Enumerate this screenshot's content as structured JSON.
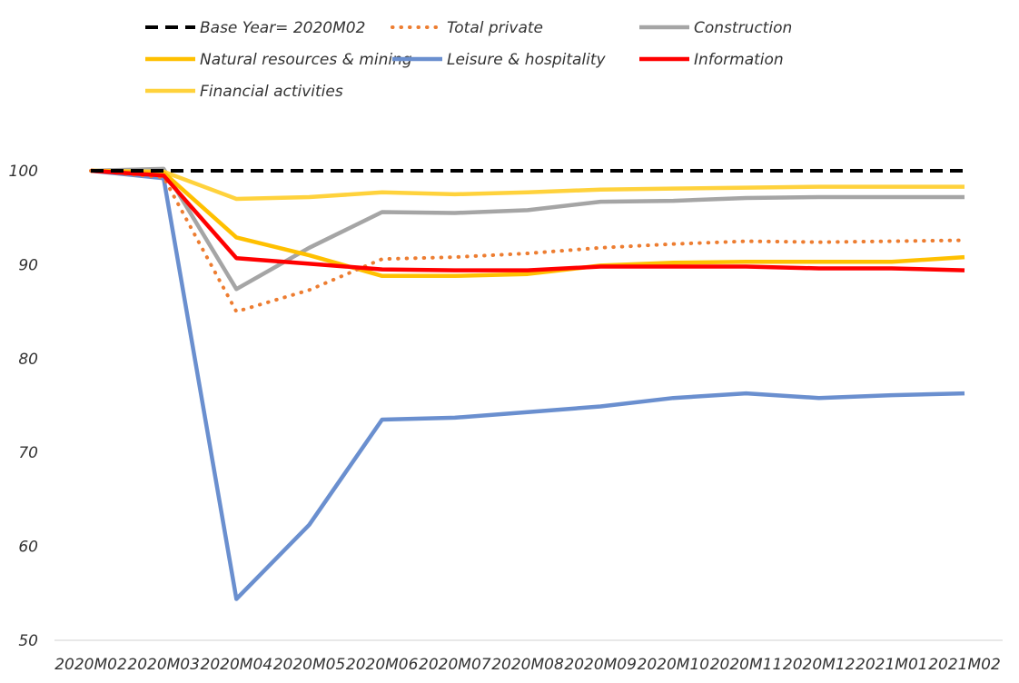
{
  "chart_data": {
    "type": "line",
    "title": "",
    "xlabel": "",
    "ylabel": "",
    "ylim": [
      50,
      100
    ],
    "yticks": [
      "50",
      "60",
      "70",
      "80",
      "90",
      "100"
    ],
    "categories": [
      "2020M02",
      "2020M03",
      "2020M04",
      "2020M05",
      "2020M06",
      "2020M07",
      "2020M08",
      "2020M09",
      "2020M10",
      "2020M11",
      "2020M12",
      "2021M01",
      "2021M02"
    ],
    "legend_position": "top",
    "grid": false,
    "series": [
      {
        "name": "Base Year= 2020M02",
        "color": "#000000",
        "style": "dashed",
        "values": [
          100,
          100,
          100,
          100,
          100,
          100,
          100,
          100,
          100,
          100,
          100,
          100,
          100
        ]
      },
      {
        "name": "Total private",
        "color": "#ED7D31",
        "style": "dotted",
        "values": [
          100,
          99.3,
          85.0,
          87.3,
          90.6,
          90.8,
          91.2,
          91.8,
          92.2,
          92.5,
          92.4,
          92.5,
          92.6
        ]
      },
      {
        "name": "Construction",
        "color": "#A5A5A5",
        "style": "solid",
        "values": [
          100,
          100.2,
          87.4,
          91.8,
          95.6,
          95.5,
          95.8,
          96.7,
          96.8,
          97.1,
          97.2,
          97.2,
          97.2
        ]
      },
      {
        "name": "Natural resources & mining",
        "color": "#FFC000",
        "style": "solid",
        "values": [
          100,
          99.8,
          92.9,
          91.0,
          88.8,
          88.8,
          89.0,
          89.9,
          90.2,
          90.3,
          90.3,
          90.3,
          90.8
        ]
      },
      {
        "name": "Leisure & hospitality",
        "color": "#6A8FCF",
        "style": "solid",
        "values": [
          100,
          99.2,
          54.4,
          62.3,
          73.5,
          73.7,
          74.3,
          74.9,
          75.8,
          76.3,
          75.8,
          76.1,
          76.3
        ]
      },
      {
        "name": "Information",
        "color": "#FF0000",
        "style": "solid",
        "values": [
          100,
          99.5,
          90.7,
          90.1,
          89.5,
          89.4,
          89.4,
          89.8,
          89.8,
          89.8,
          89.6,
          89.6,
          89.4
        ]
      },
      {
        "name": "Financial activities",
        "color": "#FFD23C",
        "style": "solid",
        "values": [
          100,
          99.9,
          97.0,
          97.2,
          97.7,
          97.5,
          97.7,
          98.0,
          98.1,
          98.2,
          98.3,
          98.3,
          98.3
        ]
      }
    ]
  }
}
